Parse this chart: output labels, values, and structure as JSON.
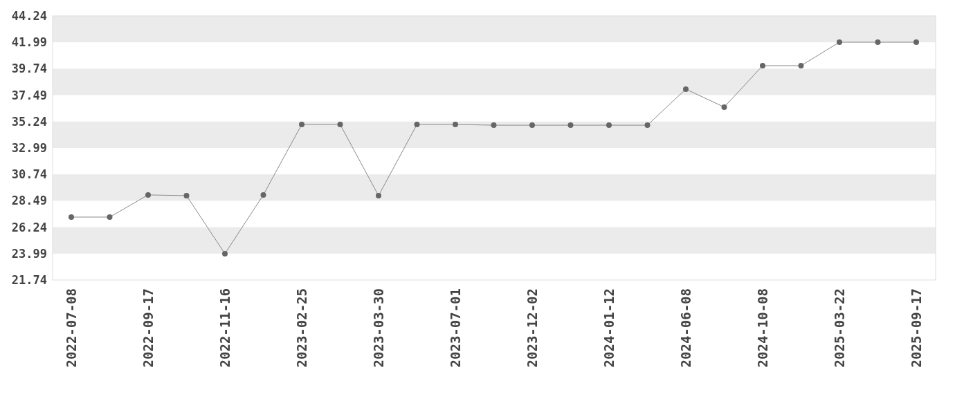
{
  "chart_data": {
    "type": "line",
    "categories": [
      "2022-07-08",
      null,
      "2022-09-17",
      null,
      "2022-11-16",
      null,
      "2023-02-25",
      null,
      "2023-03-30",
      null,
      "2023-07-01",
      null,
      "2023-12-02",
      null,
      "2024-01-12",
      null,
      "2024-06-08",
      null,
      "2024-10-08",
      null,
      "2025-03-22",
      null,
      "2025-09-17"
    ],
    "series": [
      {
        "color": "#666666",
        "values": [
          27.1,
          27.1,
          28.99,
          28.93,
          23.98,
          28.99,
          34.99,
          34.99,
          28.93,
          34.99,
          34.99,
          34.93,
          34.93,
          34.93,
          34.93,
          34.93,
          38.0,
          36.47,
          40.0,
          40.0,
          42.0,
          42.0,
          42.0
        ]
      }
    ],
    "ylim": [
      21.74,
      44.24
    ],
    "yticks": [
      21.74,
      23.99,
      26.24,
      28.49,
      30.74,
      32.99,
      35.24,
      37.49,
      39.74,
      41.99,
      44.24
    ],
    "marker": "circle",
    "line_style": "solid"
  }
}
